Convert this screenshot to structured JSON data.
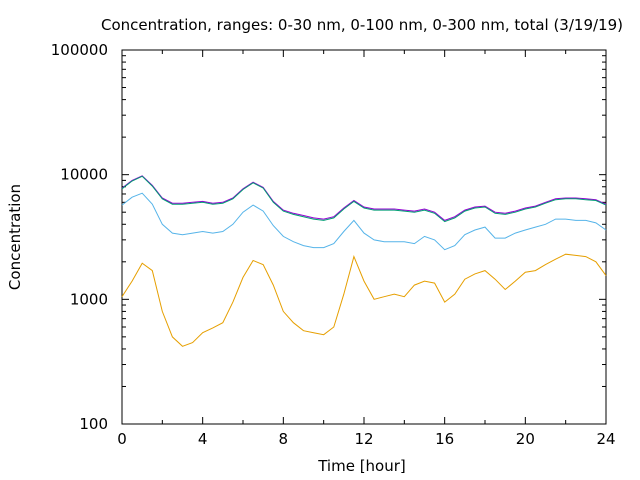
{
  "chart_data": {
    "type": "line",
    "title": "Concentration, ranges: 0-30 nm, 0-100 nm, 0-300 nm, total (3/19/19)",
    "xlabel": "Time [hour]",
    "ylabel": "Concentration",
    "xlim": [
      0,
      24
    ],
    "ylim": [
      100,
      100000
    ],
    "yscale": "log",
    "grid": false,
    "x_ticks": [
      0,
      4,
      8,
      12,
      16,
      20,
      24
    ],
    "x_tick_labels": [
      "0",
      "4",
      "8",
      "12",
      "16",
      "20",
      "24"
    ],
    "y_ticks": [
      100,
      1000,
      10000,
      100000
    ],
    "y_tick_labels": [
      "100",
      "1000",
      "10000",
      "100000"
    ],
    "x": [
      0,
      0.5,
      1,
      1.5,
      2,
      2.5,
      3,
      3.5,
      4,
      4.5,
      5,
      5.5,
      6,
      6.5,
      7,
      7.5,
      8,
      8.5,
      9,
      9.5,
      10,
      10.5,
      11,
      11.5,
      12,
      12.5,
      13,
      13.5,
      14,
      14.5,
      15,
      15.5,
      16,
      16.5,
      17,
      17.5,
      18,
      18.5,
      19,
      19.5,
      20,
      20.5,
      21,
      21.5,
      22,
      22.5,
      23,
      23.5,
      24
    ],
    "series": [
      {
        "color": "#9400d3",
        "values": [
          7800,
          9000,
          9800,
          8200,
          6500,
          5900,
          5900,
          6000,
          6100,
          5900,
          6000,
          6500,
          7700,
          8700,
          7900,
          6100,
          5200,
          4900,
          4700,
          4500,
          4400,
          4600,
          5400,
          6200,
          5500,
          5300,
          5300,
          5300,
          5200,
          5100,
          5300,
          5000,
          4300,
          4600,
          5200,
          5500,
          5600,
          5000,
          4900,
          5100,
          5400,
          5600,
          6000,
          6400,
          6500,
          6500,
          6400,
          6300,
          5800
        ]
      },
      {
        "color": "#009e73",
        "values": [
          7700,
          8900,
          9700,
          8100,
          6400,
          5800,
          5800,
          5900,
          6000,
          5800,
          5900,
          6400,
          7600,
          8600,
          7800,
          6000,
          5100,
          4800,
          4600,
          4400,
          4300,
          4500,
          5300,
          6100,
          5400,
          5200,
          5200,
          5200,
          5100,
          5000,
          5200,
          4900,
          4200,
          4500,
          5100,
          5400,
          5500,
          4900,
          4800,
          5000,
          5300,
          5500,
          5900,
          6300,
          6400,
          6400,
          6300,
          6200,
          5700
        ]
      },
      {
        "color": "#56b4e9",
        "values": [
          5700,
          6600,
          7100,
          5800,
          4000,
          3400,
          3300,
          3400,
          3500,
          3400,
          3500,
          4000,
          5000,
          5700,
          5100,
          3900,
          3200,
          2900,
          2700,
          2600,
          2600,
          2800,
          3500,
          4300,
          3400,
          3000,
          2900,
          2900,
          2900,
          2800,
          3200,
          3000,
          2500,
          2700,
          3300,
          3600,
          3800,
          3100,
          3100,
          3400,
          3600,
          3800,
          4000,
          4400,
          4400,
          4300,
          4300,
          4100,
          3600
        ]
      },
      {
        "color": "#e69f00",
        "values": [
          1050,
          1400,
          1950,
          1700,
          800,
          500,
          420,
          450,
          540,
          590,
          650,
          950,
          1500,
          2050,
          1900,
          1300,
          800,
          650,
          560,
          540,
          520,
          600,
          1100,
          2200,
          1400,
          1000,
          1050,
          1100,
          1050,
          1300,
          1400,
          1350,
          950,
          1100,
          1450,
          1600,
          1700,
          1450,
          1200,
          1400,
          1650,
          1700,
          1900,
          2100,
          2300,
          2250,
          2200,
          2000,
          1550
        ]
      }
    ]
  }
}
